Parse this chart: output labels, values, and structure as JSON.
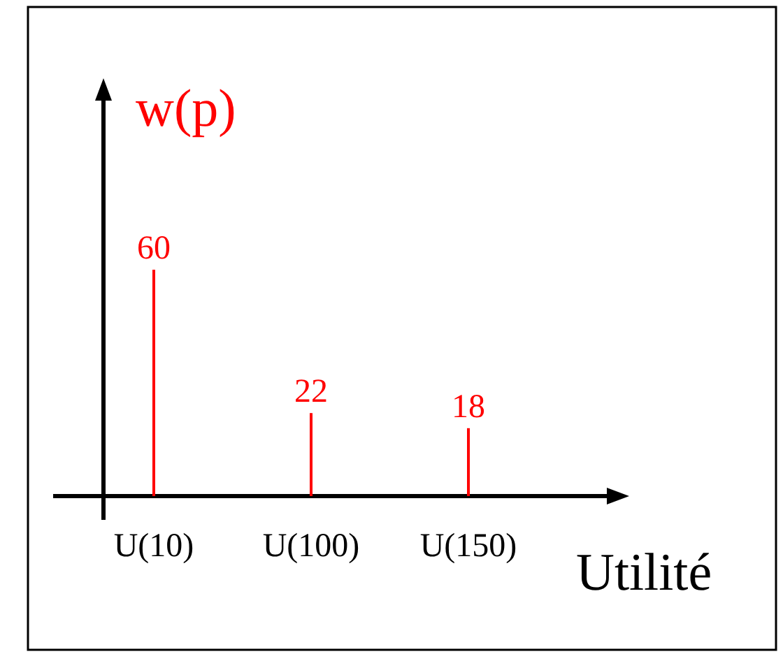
{
  "chart_data": {
    "type": "bar",
    "ylabel": "w(p)",
    "xlabel": "Utilité",
    "categories": [
      "U(10)",
      "U(100)",
      "U(150)"
    ],
    "values": [
      60,
      22,
      18
    ],
    "color": "#ff0000",
    "data_labels": true
  }
}
